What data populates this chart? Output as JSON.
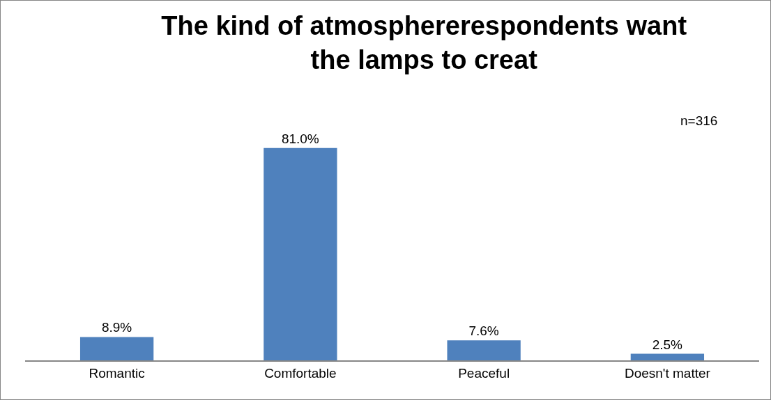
{
  "chart_data": {
    "type": "bar",
    "title": "The kind of atmosphererespondents want the lamps to creat",
    "categories": [
      "Romantic",
      "Comfortable",
      "Peaceful",
      "Doesn't matter"
    ],
    "values": [
      8.9,
      81.0,
      7.6,
      2.5
    ],
    "value_labels": [
      "8.9%",
      "81.0%",
      "7.6%",
      "2.5%"
    ],
    "color": "#4f81bd",
    "annotations": [
      "n=316"
    ],
    "grid": false
  }
}
